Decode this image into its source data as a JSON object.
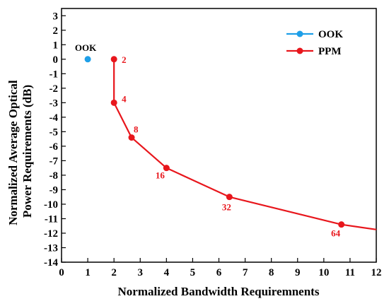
{
  "chart_data": {
    "type": "line",
    "xlabel": "Normalized Bandwidth Requiremnents",
    "ylabel": "Normalized Average Optical Power Requirements (dB)",
    "ylabel_lines": [
      "Normalized Average Optical",
      "Power Requirements (dB)"
    ],
    "xlim": [
      0,
      12
    ],
    "ylim": [
      -14,
      3.5
    ],
    "x_ticks": [
      0,
      1,
      2,
      3,
      4,
      5,
      6,
      7,
      8,
      9,
      10,
      11,
      12
    ],
    "y_ticks": [
      3,
      2,
      1,
      0,
      -1,
      -2,
      -3,
      -4,
      -5,
      -6,
      -7,
      -8,
      -9,
      -10,
      -11,
      -12,
      -13,
      -14
    ],
    "grid": false,
    "legend_position": "top-right",
    "series": [
      {
        "name": "OOK",
        "color": "#1e9fe8",
        "points": [
          {
            "x": 1,
            "y": 0,
            "label": "OOK"
          }
        ]
      },
      {
        "name": "PPM",
        "color": "#e8161c",
        "points": [
          {
            "x": 2,
            "y": 0,
            "label": "2"
          },
          {
            "x": 2,
            "y": -3,
            "label": "4"
          },
          {
            "x": 2.67,
            "y": -5.4,
            "label": "8"
          },
          {
            "x": 4,
            "y": -7.5,
            "label": "16"
          },
          {
            "x": 6.4,
            "y": -9.5,
            "label": "32"
          },
          {
            "x": 10.67,
            "y": -11.4,
            "label": "64"
          }
        ],
        "trailing_line_to": {
          "x": 12,
          "y": -11.75
        }
      }
    ]
  }
}
